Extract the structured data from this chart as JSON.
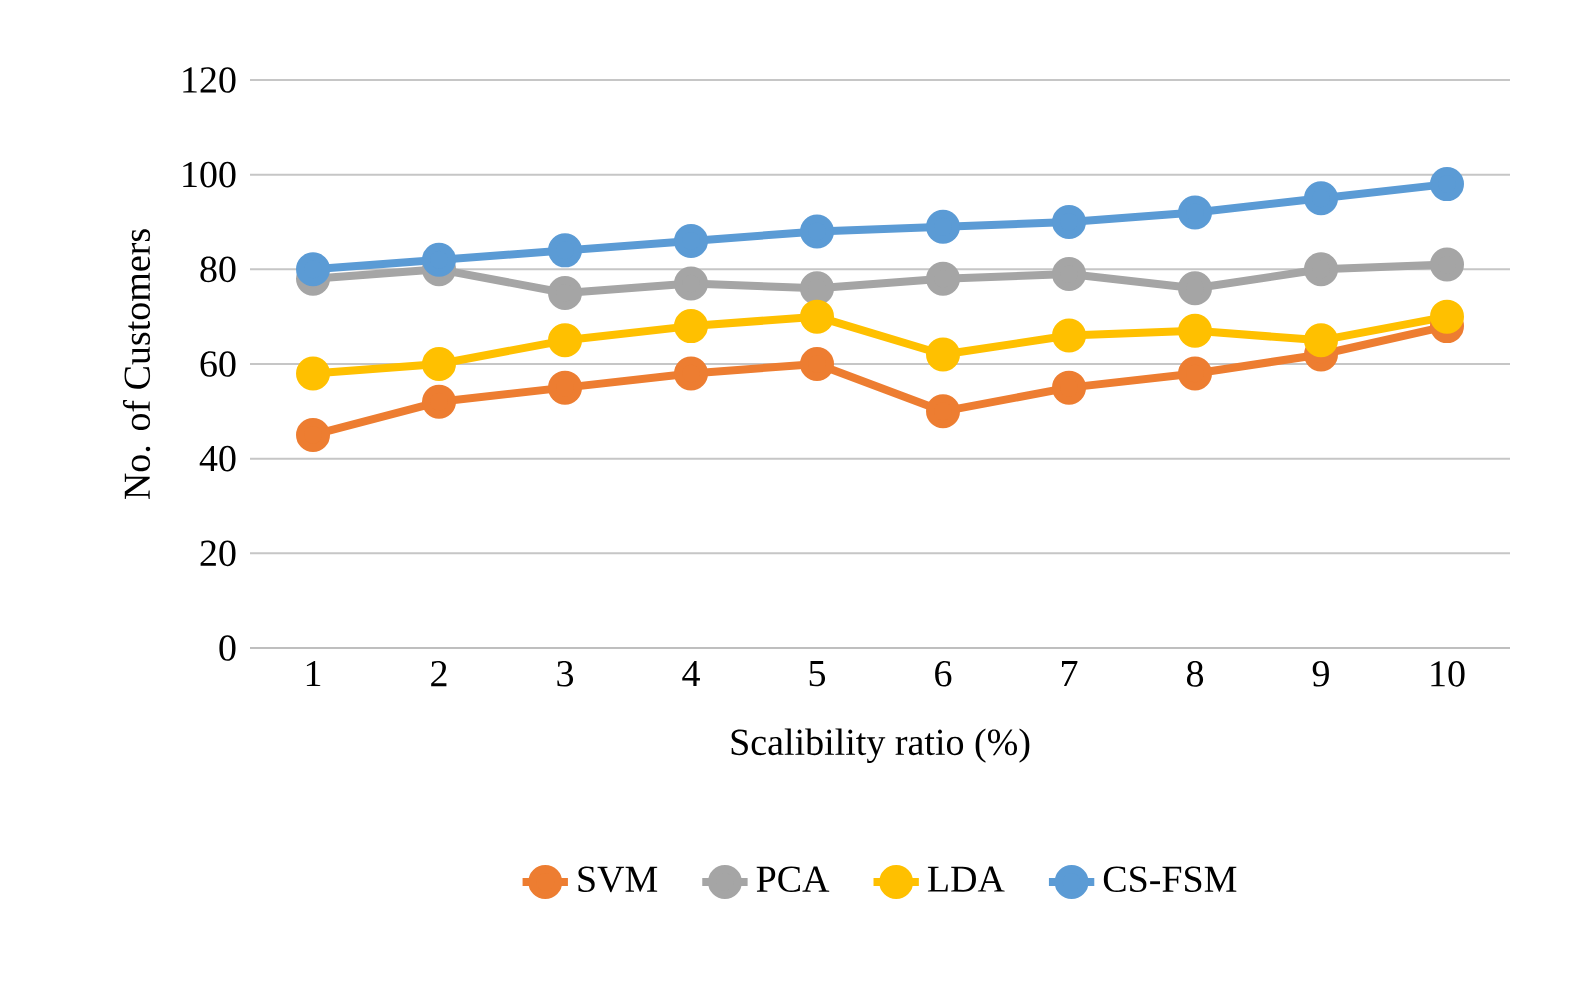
{
  "chart_data": {
    "type": "line",
    "xlabel": "Scalibility ratio (%)",
    "ylabel": "No. of Customers",
    "categories": [
      "1",
      "2",
      "3",
      "4",
      "5",
      "6",
      "7",
      "8",
      "9",
      "10"
    ],
    "series": [
      {
        "name": "SVM",
        "color": "#ed7d31",
        "values": [
          45,
          52,
          55,
          58,
          60,
          50,
          55,
          58,
          62,
          68
        ]
      },
      {
        "name": "PCA",
        "color": "#a5a5a5",
        "values": [
          78,
          80,
          75,
          77,
          76,
          78,
          79,
          76,
          80,
          81
        ]
      },
      {
        "name": "LDA",
        "color": "#ffc000",
        "values": [
          58,
          60,
          65,
          68,
          70,
          62,
          66,
          67,
          65,
          70
        ]
      },
      {
        "name": "CS-FSM",
        "color": "#5b9bd5",
        "values": [
          80,
          82,
          84,
          86,
          88,
          89,
          90,
          92,
          95,
          98
        ]
      }
    ],
    "ylim": [
      0,
      120
    ],
    "yticks": [
      0,
      20,
      40,
      60,
      80,
      100,
      120
    ],
    "grid": "y",
    "legend": "bottom",
    "marker": "circle",
    "line_style": "solid"
  }
}
